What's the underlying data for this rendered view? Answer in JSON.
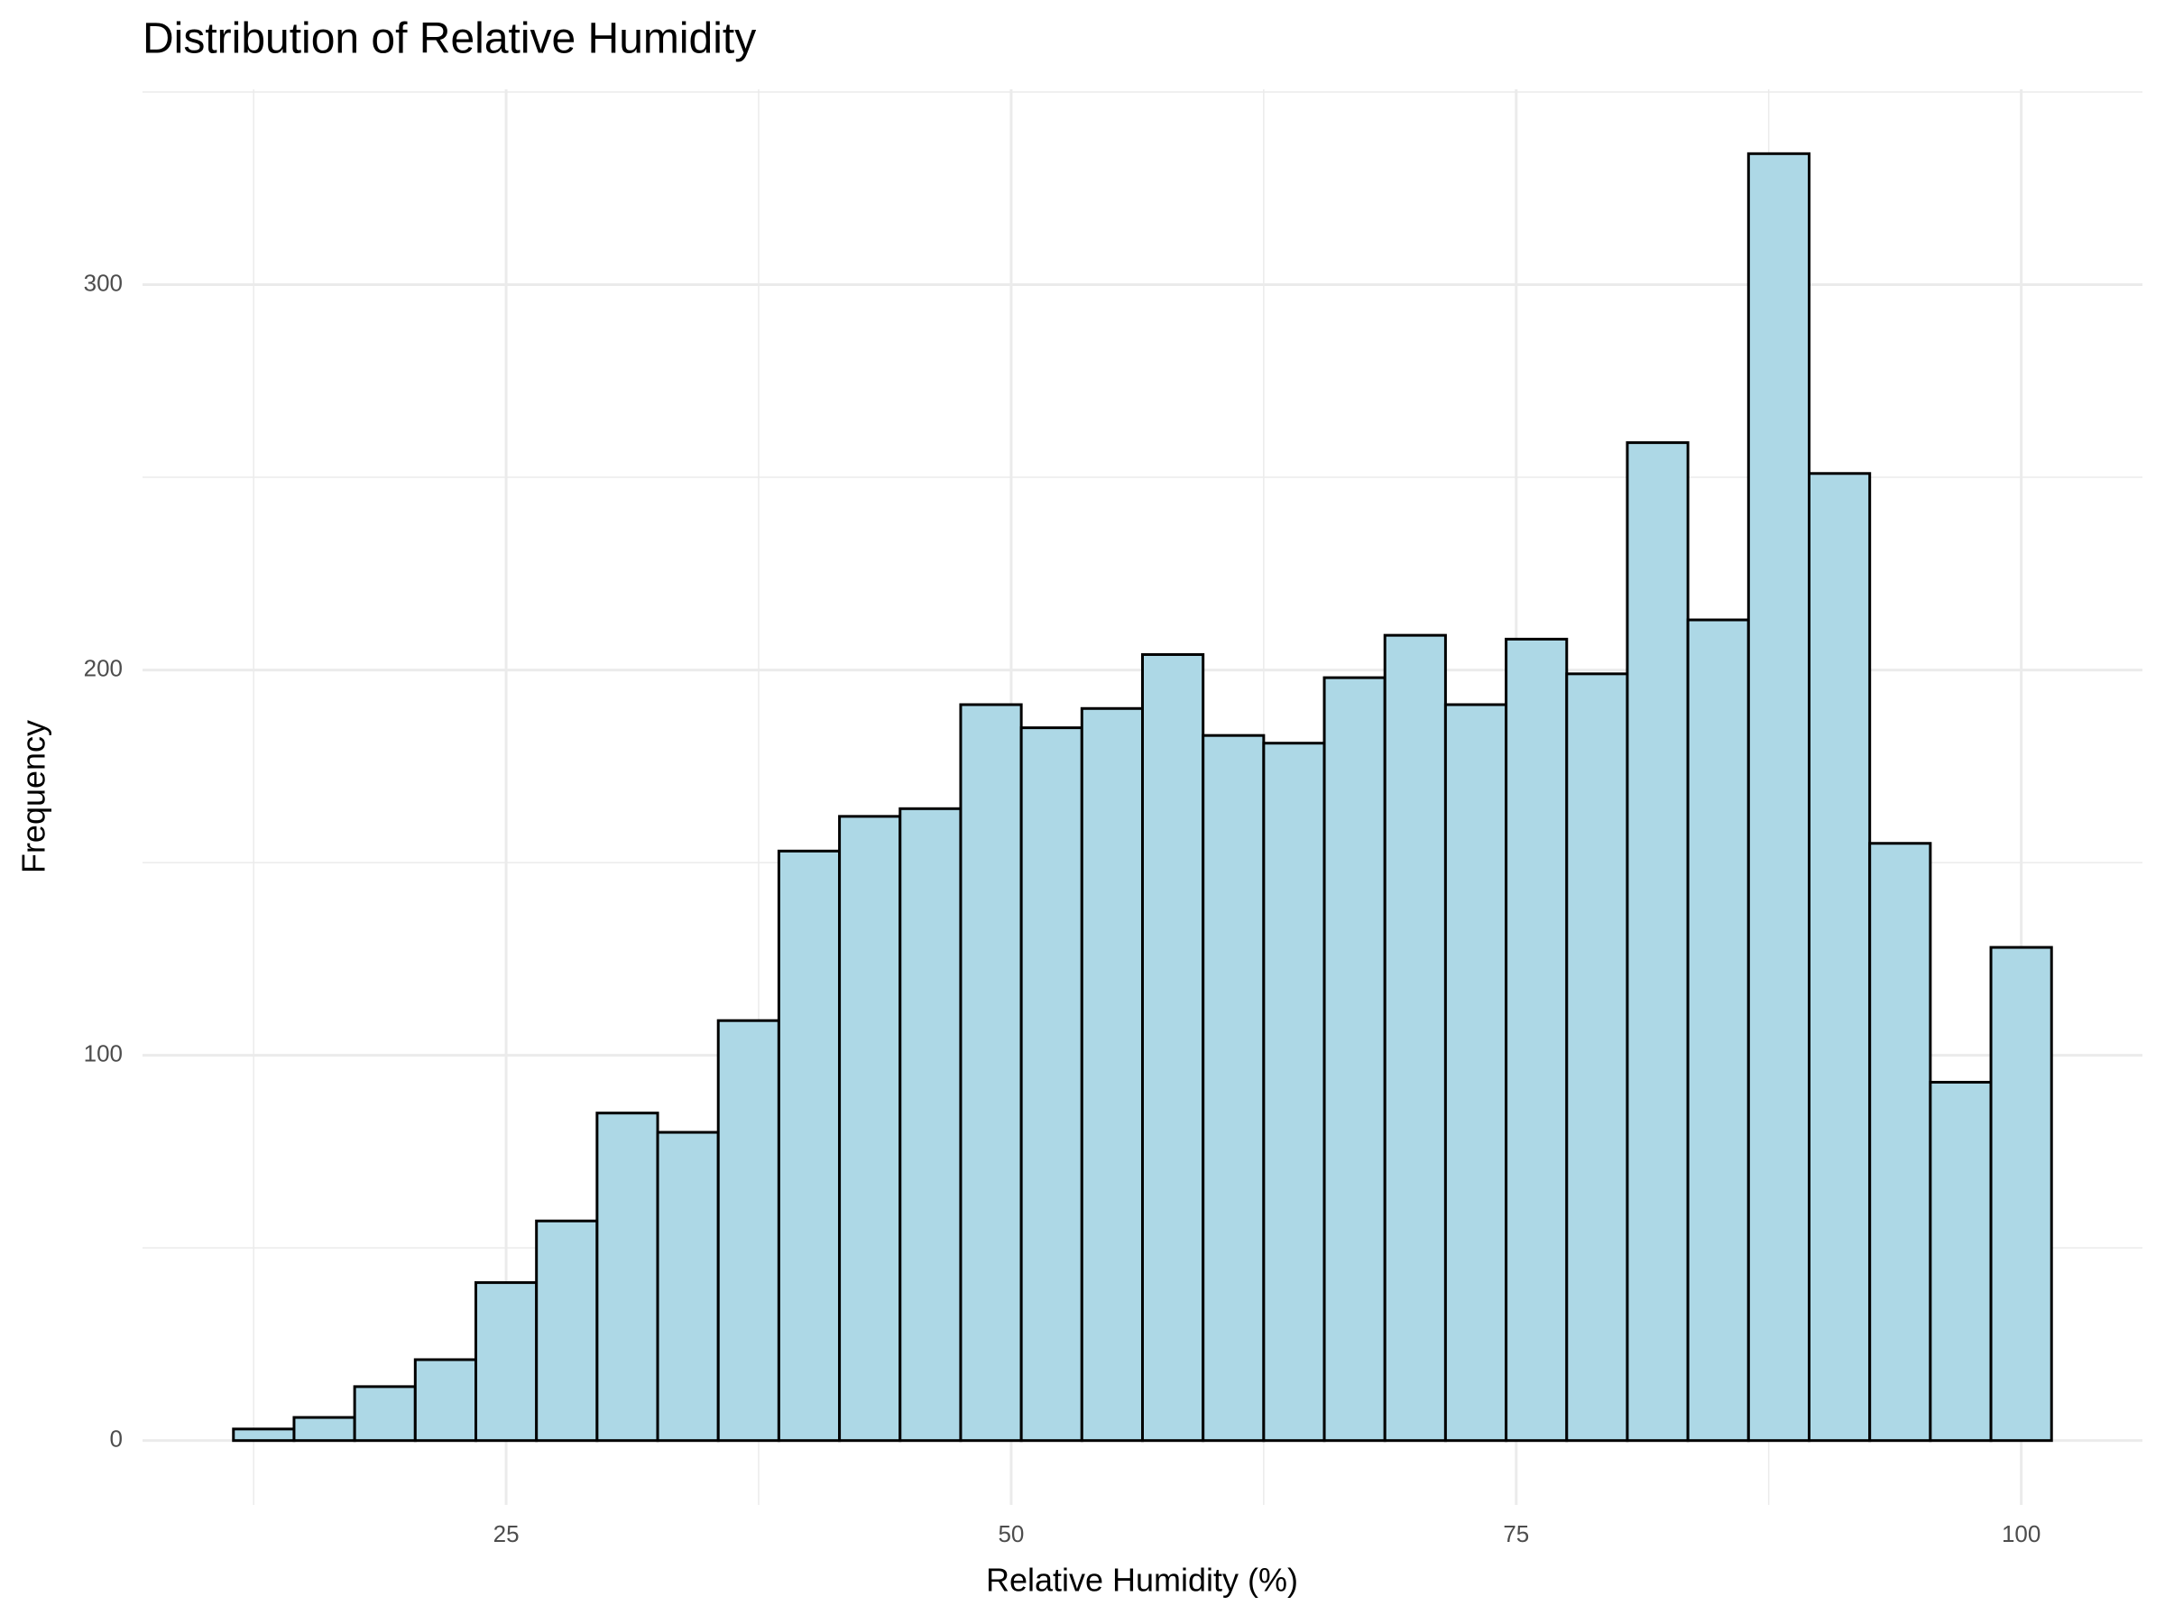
{
  "chart_data": {
    "type": "histogram",
    "title": "Distribution of Relative Humidity",
    "x_label": "Relative Humidity (%)",
    "y_label": "Frequency",
    "bins": [
      11.5,
      14.5,
      17.5,
      20.5,
      23.5,
      26.5,
      29.5,
      32.5,
      35.5,
      38.5,
      41.5,
      44.5,
      47.5,
      50.5,
      53.5,
      56.5,
      59.5,
      62.5,
      65.5,
      68.5,
      71.5,
      74.5,
      77.5,
      80.5,
      83.5,
      86.5,
      89.5,
      92.5,
      95.5,
      98.5,
      101.5
    ],
    "values": [
      3,
      6,
      14,
      21,
      41,
      57,
      85,
      80,
      109,
      153,
      162,
      164,
      191,
      185,
      190,
      204,
      183,
      181,
      198,
      209,
      191,
      208,
      199,
      259,
      213,
      334,
      251,
      155,
      93,
      128
    ],
    "color": "#add8e6",
    "edge_color": "#000000",
    "xlim": [
      7,
      106
    ],
    "ylim": [
      -16.7,
      350.7
    ],
    "xticks": [
      25,
      50,
      75,
      100
    ],
    "yticks": [
      0,
      100,
      200,
      300
    ],
    "grid": true
  }
}
